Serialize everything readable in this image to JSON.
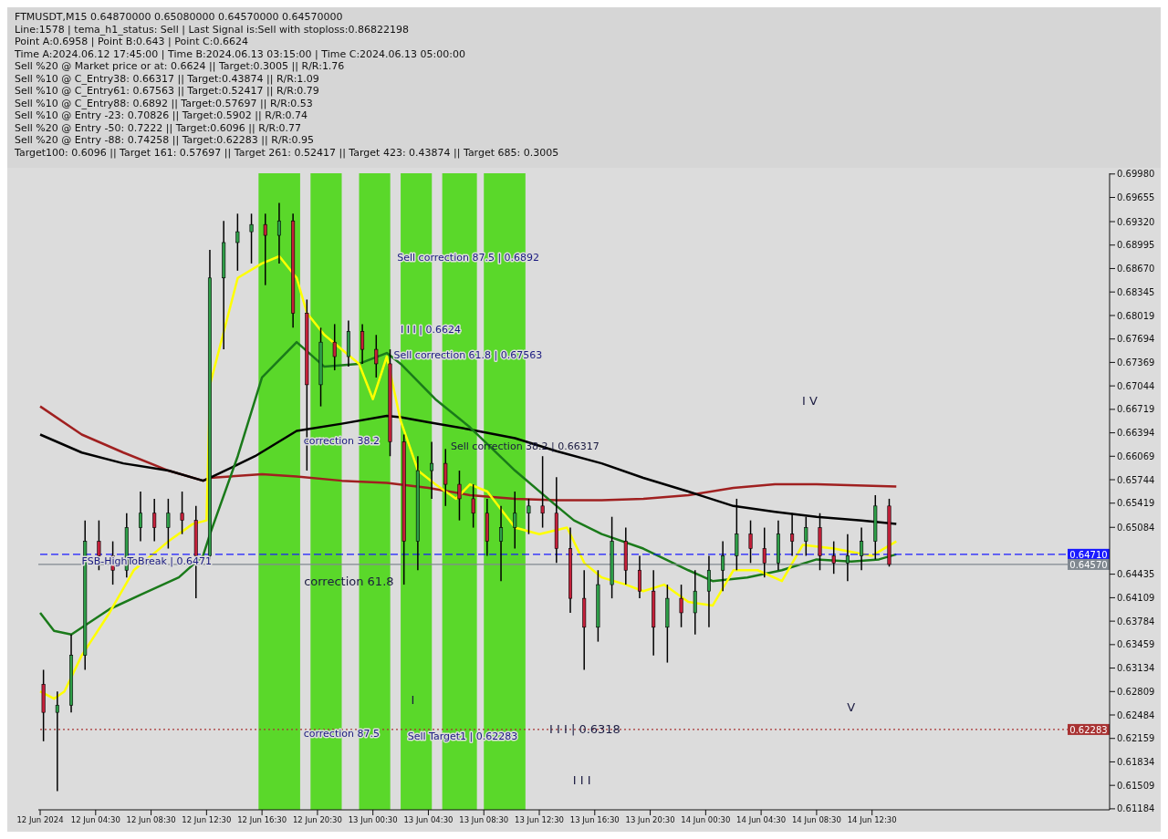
{
  "chart_data": {
    "type": "candlestick",
    "title": "FTMUSDT,M15  0.64870000 0.65080000 0.64570000 0.64570000",
    "annotations": [
      "Line:1578 | tema_h1_status: Sell | Last Signal is:Sell with stoploss:0.86822198",
      "Point A:0.6958 | Point B:0.643 | Point C:0.6624",
      "Time A:2024.06.12 17:45:00 | Time B:2024.06.13 03:15:00 | Time C:2024.06.13 05:00:00",
      "Sell %20 @ Market price or at: 0.6624 || Target:0.3005 || R/R:1.76",
      "Sell %10 @ C_Entry38: 0.66317 || Target:0.43874 || R/R:1.09",
      "Sell %10 @ C_Entry61: 0.67563 || Target:0.52417 || R/R:0.79",
      "Sell %10 @ C_Entry88: 0.6892 || Target:0.57697 || R/R:0.53",
      "Sell %10 @ Entry -23: 0.70826 || Target:0.5902 || R/R:0.74",
      "Sell %20 @ Entry -50: 0.7222 || Target:0.6096 || R/R:0.77",
      "Sell %20 @ Entry -88: 0.74258 || Target:0.62283 || R/R:0.95",
      "Target100: 0.6096 || Target 161: 0.57697 || Target 261: 0.52417 || Target 423: 0.43874 || Target 685: 0.3005",
      "correction 61.8",
      "I I I | 0.6318",
      "I V",
      "V",
      "I",
      "I I I",
      "Sell correction 38.2 | 0.66317",
      {
        "text": "Sell correction 87.5 | 0.6892",
        "x": "2024-06-13T02:15",
        "y": 0.6892
      },
      {
        "text": "I I I | 0.6624",
        "x": "2024-06-13T02:30",
        "y": 0.6792
      },
      {
        "text": "Sell correction 61.8 | 0.67563",
        "x": "2024-06-13T02:00",
        "y": 0.67563
      },
      {
        "text": "correction 38.2",
        "x": "2024-06-12T19:30",
        "y": 0.6638
      },
      {
        "text": "FSB-HighToBreak | 0.6471",
        "x": "2024-06-12T03:30",
        "y": 0.6471
      },
      {
        "text": "correction 87.5",
        "x": "2024-06-12T19:30",
        "y": 0.6232
      },
      {
        "text": "Sell Target1 | 0.62283",
        "x": "2024-06-13T03:00",
        "y": 0.62283
      }
    ],
    "x": [
      "2024-06-12T00:45",
      "2024-06-12T01:45",
      "2024-06-12T02:45",
      "2024-06-12T03:45",
      "2024-06-12T04:45",
      "2024-06-12T05:45",
      "2024-06-12T06:45",
      "2024-06-12T07:45",
      "2024-06-12T08:45",
      "2024-06-12T09:45",
      "2024-06-12T10:45",
      "2024-06-12T11:45",
      "2024-06-12T12:45",
      "2024-06-12T13:45",
      "2024-06-12T14:45",
      "2024-06-12T15:45",
      "2024-06-12T16:45",
      "2024-06-12T17:45",
      "2024-06-12T18:45",
      "2024-06-12T19:45",
      "2024-06-12T20:45",
      "2024-06-12T21:45",
      "2024-06-12T22:45",
      "2024-06-12T23:45",
      "2024-06-13T00:45",
      "2024-06-13T01:45",
      "2024-06-13T02:45",
      "2024-06-13T03:45",
      "2024-06-13T04:45",
      "2024-06-13T05:45",
      "2024-06-13T06:45",
      "2024-06-13T07:45",
      "2024-06-13T08:45",
      "2024-06-13T09:45",
      "2024-06-13T10:45",
      "2024-06-13T11:45",
      "2024-06-13T12:45",
      "2024-06-13T13:45",
      "2024-06-13T14:45",
      "2024-06-13T15:45",
      "2024-06-13T16:45",
      "2024-06-13T17:45",
      "2024-06-13T18:45",
      "2024-06-13T19:45",
      "2024-06-13T20:45",
      "2024-06-13T21:45",
      "2024-06-13T22:45",
      "2024-06-13T23:45",
      "2024-06-14T00:45",
      "2024-06-14T01:45",
      "2024-06-14T02:45",
      "2024-06-14T03:45",
      "2024-06-14T04:45",
      "2024-06-14T05:45",
      "2024-06-14T06:45",
      "2024-06-14T07:45",
      "2024-06-14T08:45",
      "2024-06-14T09:45",
      "2024-06-14T10:45",
      "2024-06-14T11:45",
      "2024-06-14T12:45",
      "2024-06-14T13:45"
    ],
    "ohlc": [
      [
        0.6291,
        0.6311,
        0.6212,
        0.6252
      ],
      [
        0.6252,
        0.6281,
        0.6143,
        0.6262
      ],
      [
        0.6262,
        0.636,
        0.6252,
        0.6331
      ],
      [
        0.6331,
        0.6518,
        0.6311,
        0.6489
      ],
      [
        0.6489,
        0.6518,
        0.6449,
        0.6469
      ],
      [
        0.6469,
        0.6489,
        0.6429,
        0.6449
      ],
      [
        0.6449,
        0.6528,
        0.6439,
        0.6508
      ],
      [
        0.6508,
        0.6558,
        0.6489,
        0.6528
      ],
      [
        0.6528,
        0.6548,
        0.6489,
        0.6508
      ],
      [
        0.6508,
        0.6548,
        0.6479,
        0.6528
      ],
      [
        0.6528,
        0.6558,
        0.6499,
        0.6518
      ],
      [
        0.6518,
        0.6538,
        0.641,
        0.6469
      ],
      [
        0.6469,
        0.6893,
        0.6464,
        0.6854
      ],
      [
        0.6854,
        0.6933,
        0.6755,
        0.6903
      ],
      [
        0.6903,
        0.6943,
        0.6864,
        0.6918
      ],
      [
        0.6918,
        0.6943,
        0.6874,
        0.6928
      ],
      [
        0.6928,
        0.6943,
        0.6844,
        0.6913
      ],
      [
        0.6913,
        0.6958,
        0.6874,
        0.6933
      ],
      [
        0.6933,
        0.6943,
        0.6785,
        0.6805
      ],
      [
        0.6805,
        0.6824,
        0.6587,
        0.6706
      ],
      [
        0.6706,
        0.6785,
        0.6676,
        0.6765
      ],
      [
        0.6765,
        0.679,
        0.6726,
        0.6745
      ],
      [
        0.6745,
        0.6795,
        0.6731,
        0.678
      ],
      [
        0.678,
        0.679,
        0.6735,
        0.6755
      ],
      [
        0.6755,
        0.6775,
        0.6716,
        0.6735
      ],
      [
        0.6735,
        0.6755,
        0.6607,
        0.6627
      ],
      [
        0.6627,
        0.6637,
        0.6429,
        0.6489
      ],
      [
        0.6489,
        0.6607,
        0.6449,
        0.6587
      ],
      [
        0.6587,
        0.6627,
        0.6548,
        0.6597
      ],
      [
        0.6597,
        0.6617,
        0.6538,
        0.6568
      ],
      [
        0.6568,
        0.6587,
        0.6518,
        0.6548
      ],
      [
        0.6548,
        0.6568,
        0.6508,
        0.6528
      ],
      [
        0.6528,
        0.6548,
        0.6469,
        0.6489
      ],
      [
        0.6489,
        0.6538,
        0.6434,
        0.6508
      ],
      [
        0.6508,
        0.6558,
        0.6479,
        0.6528
      ],
      [
        0.6528,
        0.6548,
        0.6499,
        0.6538
      ],
      [
        0.6538,
        0.6607,
        0.6508,
        0.6528
      ],
      [
        0.6528,
        0.6578,
        0.6459,
        0.6479
      ],
      [
        0.6479,
        0.6508,
        0.639,
        0.641
      ],
      [
        0.641,
        0.6449,
        0.6311,
        0.637
      ],
      [
        0.637,
        0.6449,
        0.635,
        0.6429
      ],
      [
        0.6429,
        0.6523,
        0.641,
        0.6489
      ],
      [
        0.6489,
        0.6508,
        0.6429,
        0.6449
      ],
      [
        0.6449,
        0.6469,
        0.641,
        0.642
      ],
      [
        0.642,
        0.6449,
        0.6331,
        0.637
      ],
      [
        0.637,
        0.6429,
        0.6321,
        0.641
      ],
      [
        0.641,
        0.6429,
        0.637,
        0.639
      ],
      [
        0.639,
        0.6449,
        0.636,
        0.642
      ],
      [
        0.642,
        0.6469,
        0.637,
        0.6449
      ],
      [
        0.6449,
        0.6489,
        0.642,
        0.6469
      ],
      [
        0.6469,
        0.6548,
        0.6449,
        0.6499
      ],
      [
        0.6499,
        0.6518,
        0.6459,
        0.6479
      ],
      [
        0.6479,
        0.6508,
        0.6439,
        0.6459
      ],
      [
        0.6459,
        0.6518,
        0.6449,
        0.6499
      ],
      [
        0.6499,
        0.6528,
        0.6469,
        0.6489
      ],
      [
        0.6489,
        0.6523,
        0.6469,
        0.6508
      ],
      [
        0.6508,
        0.6528,
        0.6449,
        0.6469
      ],
      [
        0.6469,
        0.6489,
        0.6444,
        0.6459
      ],
      [
        0.6459,
        0.6499,
        0.6434,
        0.6469
      ],
      [
        0.6469,
        0.6508,
        0.6449,
        0.6489
      ],
      [
        0.6489,
        0.6553,
        0.6464,
        0.6538
      ],
      [
        0.6538,
        0.6548,
        0.6454,
        0.6457
      ]
    ],
    "series": [
      {
        "type": "line",
        "color": "#a02020",
        "x": [
          "2024-06-12T00:30",
          "2024-06-12T03:30",
          "2024-06-12T06:30",
          "2024-06-12T09:45",
          "2024-06-12T12:15",
          "2024-06-12T12:45",
          "2024-06-12T16:30",
          "2024-06-12T19:00",
          "2024-06-12T22:15",
          "2024-06-13T01:30",
          "2024-06-13T04:30",
          "2024-06-13T07:30",
          "2024-06-13T10:45",
          "2024-06-13T13:45",
          "2024-06-13T17:00",
          "2024-06-13T20:00",
          "2024-06-13T23:15",
          "2024-06-14T02:30",
          "2024-06-14T05:30",
          "2024-06-14T08:30",
          "2024-06-14T14:15"
        ],
        "values": [
          0.6676,
          0.6637,
          0.6612,
          0.6587,
          0.6573,
          0.6577,
          0.6582,
          0.6579,
          0.6573,
          0.657,
          0.6563,
          0.6553,
          0.6548,
          0.6546,
          0.6546,
          0.6548,
          0.6553,
          0.6563,
          0.6568,
          0.6568,
          0.6565
        ]
      },
      {
        "type": "line",
        "color": "#000000",
        "x": [
          "2024-06-12T00:30",
          "2024-06-12T03:30",
          "2024-06-12T06:30",
          "2024-06-12T09:45",
          "2024-06-12T12:15",
          "2024-06-12T12:45",
          "2024-06-12T16:00",
          "2024-06-12T19:00",
          "2024-06-12T22:15",
          "2024-06-13T01:30",
          "2024-06-13T02:30",
          "2024-06-13T04:30",
          "2024-06-13T07:30",
          "2024-06-13T10:45",
          "2024-06-13T13:45",
          "2024-06-13T17:00",
          "2024-06-13T20:00",
          "2024-06-13T23:15",
          "2024-06-14T02:30",
          "2024-06-14T05:30",
          "2024-06-14T08:30",
          "2024-06-14T11:45",
          "2024-06-14T14:15"
        ],
        "values": [
          0.6637,
          0.6612,
          0.6597,
          0.6587,
          0.6573,
          0.6577,
          0.6607,
          0.6642,
          0.6652,
          0.6663,
          0.6661,
          0.6654,
          0.6644,
          0.6632,
          0.6614,
          0.6597,
          0.6577,
          0.6558,
          0.6538,
          0.653,
          0.6523,
          0.6518,
          0.6513
        ]
      },
      {
        "type": "line",
        "color": "#1a7a1a",
        "x": [
          "2024-06-12T00:30",
          "2024-06-12T01:30",
          "2024-06-12T02:45",
          "2024-06-12T05:30",
          "2024-06-12T07:45",
          "2024-06-12T10:30",
          "2024-06-12T12:15",
          "2024-06-12T12:45",
          "2024-06-12T14:45",
          "2024-06-12T16:30",
          "2024-06-12T19:00",
          "2024-06-12T21:00",
          "2024-06-12T23:30",
          "2024-06-13T01:30",
          "2024-06-13T02:30",
          "2024-06-13T05:00",
          "2024-06-13T07:30",
          "2024-06-13T10:45",
          "2024-06-13T13:45",
          "2024-06-13T15:00",
          "2024-06-13T17:00",
          "2024-06-13T20:00",
          "2024-06-13T23:15",
          "2024-06-14T01:00",
          "2024-06-14T03:30",
          "2024-06-14T06:00",
          "2024-06-14T08:30",
          "2024-06-14T11:00",
          "2024-06-14T13:00",
          "2024-06-14T14:15"
        ],
        "values": [
          0.639,
          0.6365,
          0.636,
          0.6395,
          0.6415,
          0.6439,
          0.6469,
          0.6499,
          0.6607,
          0.6716,
          0.6765,
          0.6731,
          0.6735,
          0.675,
          0.6735,
          0.6686,
          0.6647,
          0.6587,
          0.6538,
          0.6518,
          0.6499,
          0.6479,
          0.6449,
          0.6434,
          0.6439,
          0.6449,
          0.6464,
          0.6461,
          0.6464,
          0.6471
        ]
      },
      {
        "type": "line",
        "color": "#ffff00",
        "x": [
          "2024-06-12T00:30",
          "2024-06-12T01:30",
          "2024-06-12T02:15",
          "2024-06-12T03:30",
          "2024-06-12T05:30",
          "2024-06-12T07:15",
          "2024-06-12T09:45",
          "2024-06-12T11:30",
          "2024-06-12T12:30",
          "2024-06-12T12:45",
          "2024-06-12T14:45",
          "2024-06-12T16:30",
          "2024-06-12T17:45",
          "2024-06-12T19:00",
          "2024-06-12T19:45",
          "2024-06-12T21:00",
          "2024-06-12T23:30",
          "2024-06-13T00:30",
          "2024-06-13T01:30",
          "2024-06-13T02:30",
          "2024-06-13T03:45",
          "2024-06-13T05:00",
          "2024-06-13T06:30",
          "2024-06-13T07:30",
          "2024-06-13T08:45",
          "2024-06-13T10:45",
          "2024-06-13T12:30",
          "2024-06-13T14:30",
          "2024-06-13T15:45",
          "2024-06-13T17:00",
          "2024-06-13T18:45",
          "2024-06-13T20:00",
          "2024-06-13T21:30",
          "2024-06-13T23:15",
          "2024-06-14T01:00",
          "2024-06-14T02:30",
          "2024-06-14T04:15",
          "2024-06-14T06:00",
          "2024-06-14T07:30",
          "2024-06-14T09:45",
          "2024-06-14T12:30",
          "2024-06-14T14:15"
        ],
        "values": [
          0.6281,
          0.6271,
          0.6281,
          0.6331,
          0.639,
          0.6449,
          0.6489,
          0.6513,
          0.6518,
          0.6706,
          0.6854,
          0.6874,
          0.6884,
          0.6854,
          0.6805,
          0.6775,
          0.6735,
          0.6686,
          0.6745,
          0.6656,
          0.6587,
          0.6568,
          0.6548,
          0.6568,
          0.6558,
          0.6508,
          0.6499,
          0.6508,
          0.6459,
          0.6439,
          0.6429,
          0.642,
          0.6429,
          0.6405,
          0.64,
          0.6449,
          0.6449,
          0.6434,
          0.6484,
          0.6479,
          0.6469,
          0.6489
        ]
      }
    ],
    "xlim": [
      "2024-06-12T00:22",
      "2024-06-15T05:38"
    ],
    "xticks": [
      {
        "value": "2024-06-12T00:30",
        "label": "12 Jun 2024"
      },
      {
        "value": "2024-06-12T04:30",
        "label": "12 Jun 04:30"
      },
      {
        "value": "2024-06-12T08:30",
        "label": "12 Jun 08:30"
      },
      {
        "value": "2024-06-12T12:30",
        "label": "12 Jun 12:30"
      },
      {
        "value": "2024-06-12T16:30",
        "label": "12 Jun 16:30"
      },
      {
        "value": "2024-06-12T20:30",
        "label": "12 Jun 20:30"
      },
      {
        "value": "2024-06-13T00:30",
        "label": "13 Jun 00:30"
      },
      {
        "value": "2024-06-13T04:30",
        "label": "13 Jun 04:30"
      },
      {
        "value": "2024-06-13T08:30",
        "label": "13 Jun 08:30"
      },
      {
        "value": "2024-06-13T12:30",
        "label": "13 Jun 12:30"
      },
      {
        "value": "2024-06-13T16:30",
        "label": "13 Jun 16:30"
      },
      {
        "value": "2024-06-13T20:30",
        "label": "13 Jun 20:30"
      },
      {
        "value": "2024-06-14T00:30",
        "label": "14 Jun 00:30"
      },
      {
        "value": "2024-06-14T04:30",
        "label": "14 Jun 04:30"
      },
      {
        "value": "2024-06-14T08:30",
        "label": "14 Jun 08:30"
      },
      {
        "value": "2024-06-14T12:30",
        "label": "14 Jun 12:30"
      }
    ],
    "ylim": [
      0.6117,
      0.6999
    ],
    "yticks": [
      {
        "value": 0.6998,
        "label": "0.69980"
      },
      0.69655,
      {
        "value": 0.6932,
        "label": "0.69320"
      },
      0.68995,
      {
        "value": 0.6867,
        "label": "0.68670"
      },
      0.68345,
      0.68019,
      0.67694,
      0.67369,
      0.67044,
      0.66719,
      0.66394,
      0.66069,
      0.65744,
      0.65419,
      0.65084,
      0.64435,
      0.64109,
      0.63784,
      0.63459,
      0.63134,
      0.62809,
      0.62484,
      0.62159,
      0.61834,
      0.61509,
      0.61184
    ],
    "ref_lines": [
      {
        "axis": "y",
        "value": 0.6471,
        "label": "0.64710",
        "color": "#1a1aff",
        "line_style": "dashed"
      },
      {
        "axis": "y",
        "value": 0.6457,
        "label": "0.64570",
        "color": "#808890",
        "line_style": "solid"
      },
      {
        "axis": "y",
        "value": 0.62283,
        "label": "0.62283",
        "color": "#a83232",
        "line_style": "dotted"
      }
    ],
    "bands": [
      {
        "axis": "x",
        "from": "2024-06-12T16:15",
        "to": "2024-06-12T19:15",
        "color": "#5ad82a"
      },
      {
        "axis": "x",
        "from": "2024-06-12T20:00",
        "to": "2024-06-12T22:15",
        "color": "#5ad82a"
      },
      {
        "axis": "x",
        "from": "2024-06-12T23:30",
        "to": "2024-06-13T01:45",
        "color": "#5ad82a"
      },
      {
        "axis": "x",
        "from": "2024-06-13T02:30",
        "to": "2024-06-13T04:45",
        "color": "#5ad82a"
      },
      {
        "axis": "x",
        "from": "2024-06-13T05:30",
        "to": "2024-06-13T08:00",
        "color": "#5ad82a"
      },
      {
        "axis": "x",
        "from": "2024-06-13T08:30",
        "to": "2024-06-13T11:30",
        "color": "#5ad82a"
      }
    ]
  }
}
